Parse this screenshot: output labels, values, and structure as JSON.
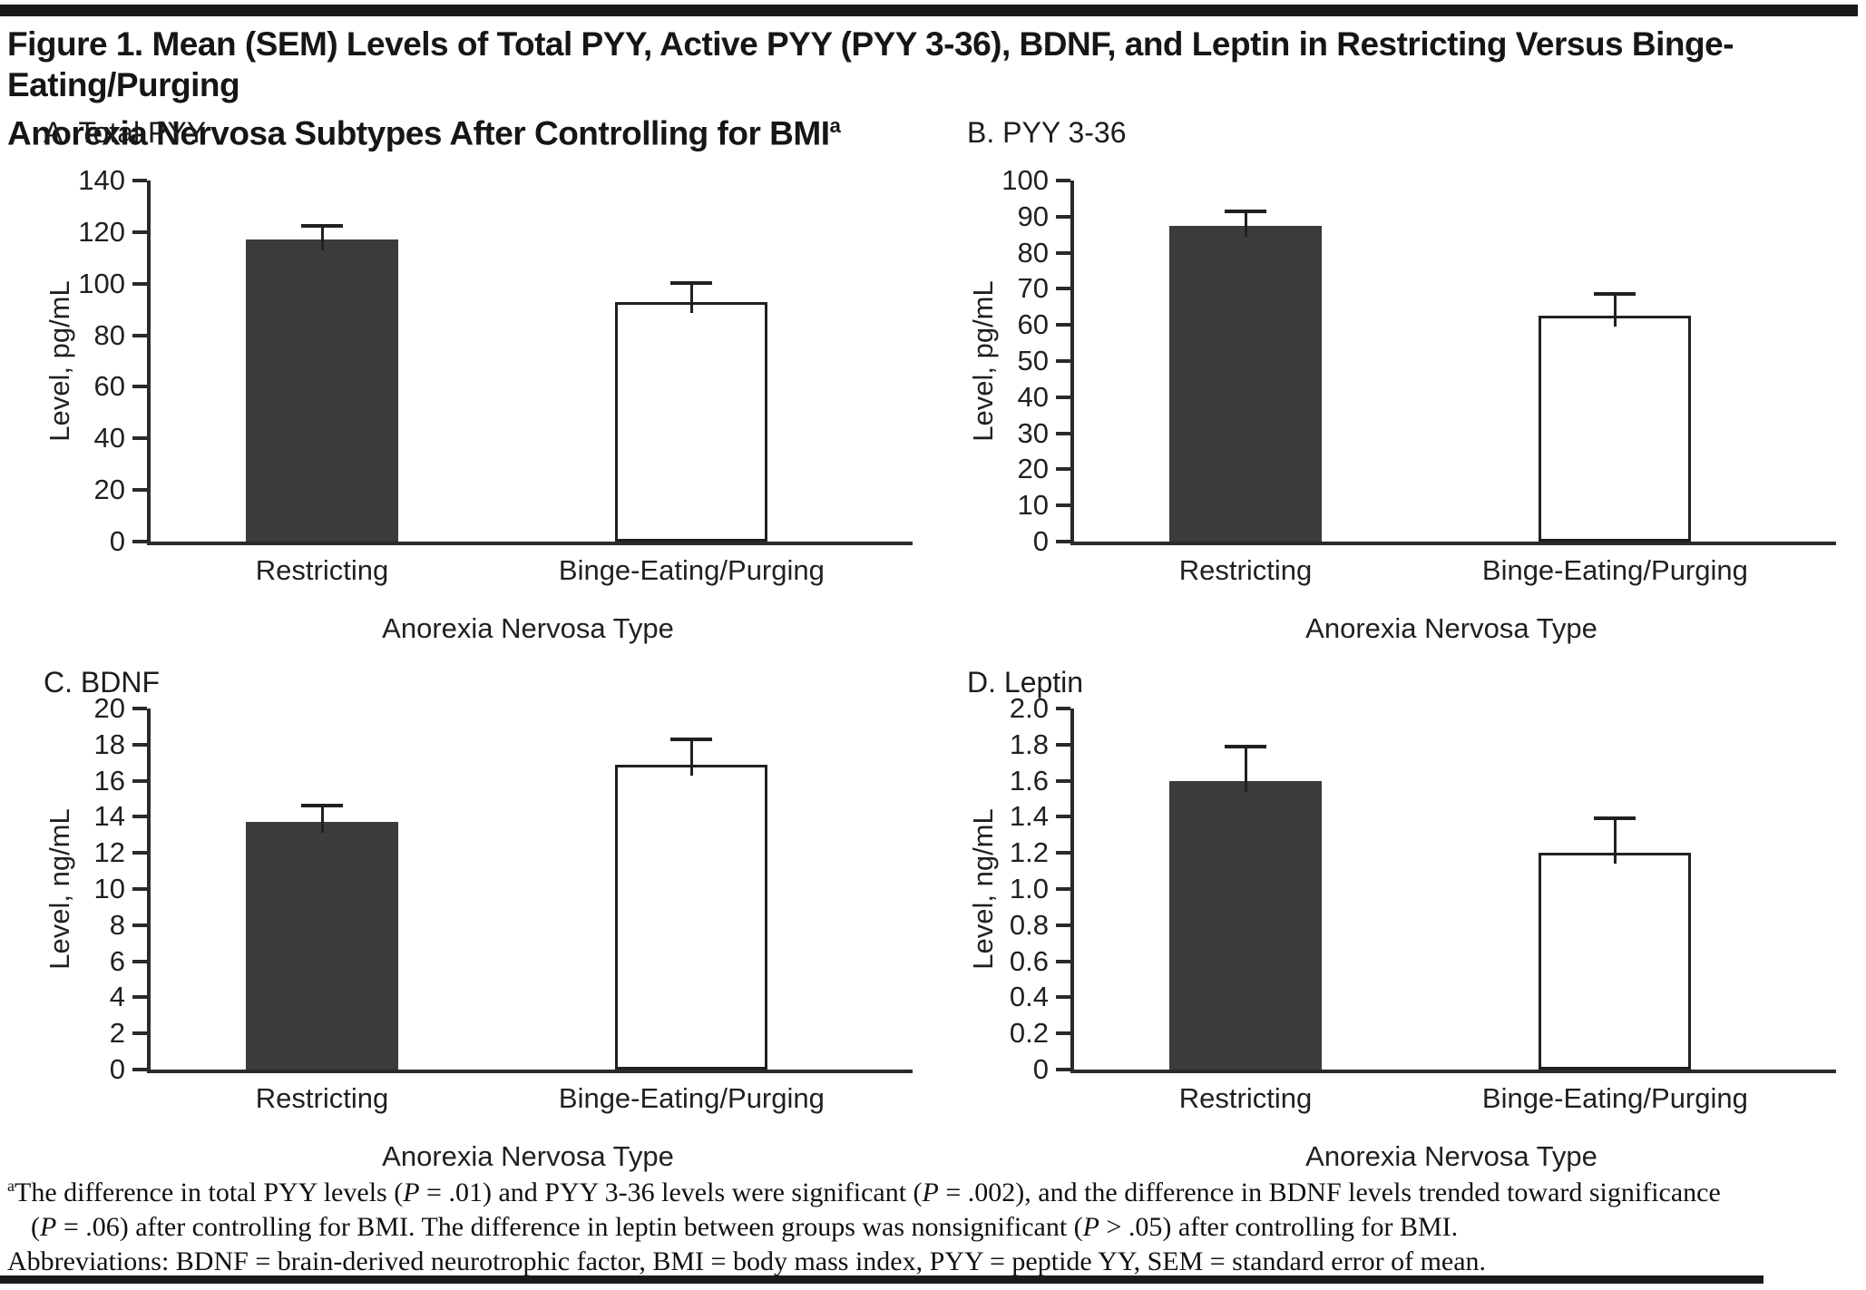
{
  "figure": {
    "title_line1": "Figure 1. Mean (SEM) Levels of Total PYY, Active PYY (PYY 3-36), BDNF, and Leptin in Restricting Versus Binge-Eating/Purging",
    "title_line2": "Anorexia Nervosa Subtypes After Controlling for BMI",
    "title_superscript": "a"
  },
  "colors": {
    "filled_bar": "#3b3b3b",
    "open_bar": "#ffffff",
    "axis": "#2a2a2a",
    "rule": "#1a1a1a"
  },
  "chart_data": [
    {
      "type": "bar",
      "panel": "A",
      "title": "A. Total PYY",
      "ylabel": "Level, pg/mL",
      "xlabel": "Anorexia Nervosa Type",
      "categories": [
        "Restricting",
        "Binge-Eating/Purging"
      ],
      "values": [
        117,
        93
      ],
      "sem": [
        6,
        8
      ],
      "ylim": [
        0,
        140
      ],
      "ytick_step": 20,
      "ytick_labels": [
        "140",
        "120",
        "100",
        "80",
        "60",
        "40",
        "20",
        "0"
      ],
      "bar_styles": [
        "filled",
        "open"
      ],
      "grid": false,
      "legend": "none"
    },
    {
      "type": "bar",
      "panel": "B",
      "title": "B. PYY 3-36",
      "ylabel": "Level, pg/mL",
      "xlabel": "Anorexia Nervosa Type",
      "categories": [
        "Restricting",
        "Binge-Eating/Purging"
      ],
      "values": [
        87.5,
        62.5
      ],
      "sem": [
        4.5,
        6.5
      ],
      "ylim": [
        0,
        100
      ],
      "ytick_step": 10,
      "ytick_labels": [
        "100",
        "90",
        "80",
        "70",
        "60",
        "50",
        "40",
        "30",
        "20",
        "10",
        "0"
      ],
      "bar_styles": [
        "filled",
        "open"
      ],
      "grid": false,
      "legend": "none"
    },
    {
      "type": "bar",
      "panel": "C",
      "title": "C. BDNF",
      "ylabel": "Level, ng/mL",
      "xlabel": "Anorexia Nervosa Type",
      "categories": [
        "Restricting",
        "Binge-Eating/Purging"
      ],
      "values": [
        13.7,
        16.9
      ],
      "sem": [
        1.0,
        1.5
      ],
      "ylim": [
        0,
        20
      ],
      "ytick_step": 2,
      "ytick_labels": [
        "20",
        "18",
        "16",
        "14",
        "12",
        "10",
        "8",
        "6",
        "4",
        "2",
        "0"
      ],
      "bar_styles": [
        "filled",
        "open"
      ],
      "grid": false,
      "legend": "none"
    },
    {
      "type": "bar",
      "panel": "D",
      "title": "D. Leptin",
      "ylabel": "Level, ng/mL",
      "xlabel": "Anorexia Nervosa Type",
      "categories": [
        "Restricting",
        "Binge-Eating/Purging"
      ],
      "values": [
        1.6,
        1.2
      ],
      "sem": [
        0.2,
        0.2
      ],
      "ylim": [
        0,
        2.0
      ],
      "ytick_step": 0.2,
      "ytick_labels": [
        "2.0",
        "1.8",
        "1.6",
        "1.4",
        "1.2",
        "1.0",
        "0.8",
        "0.6",
        "0.4",
        "0.2",
        "0"
      ],
      "bar_styles": [
        "filled",
        "open"
      ],
      "grid": false,
      "legend": "none"
    }
  ],
  "footnote": {
    "marker": "a",
    "line1": "The difference in total PYY levels (P = .01) and PYY 3-36 levels were significant (P = .002), and the difference in BDNF levels trended toward significance",
    "line2": "(P = .06) after controlling for BMI. The difference in leptin between groups was nonsignificant (P > .05) after controlling for BMI.",
    "abbreviations": "Abbreviations: BDNF = brain-derived neurotrophic factor, BMI = body mass index, PYY = peptide YY, SEM = standard error of mean."
  }
}
